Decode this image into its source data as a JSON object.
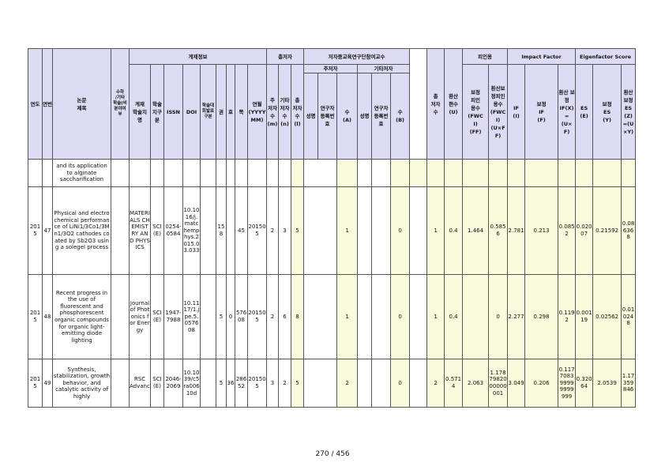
{
  "header": {
    "year": "연도",
    "seq": "연번",
    "title": "논문\n제목",
    "suha": "수하\n/기타\n학술(비\n분야여\n부",
    "journal_info": "게재정보",
    "authors": "총저자",
    "consortium": "저자중교육연구단참여교수",
    "main_author": "주저자",
    "other_author": "기타저자",
    "citation": "피인용",
    "impact_factor": "Impact Factor",
    "eigenfactor": "Eigenfactor Score",
    "journal_name": "게재\n학술지\n명",
    "category": "학술\n지구\n분",
    "issn": "ISSN",
    "doi": "DOI",
    "kci": "학술대\n회발표\n구분",
    "volume": "권",
    "issue": "호",
    "page": "쪽",
    "date": "연월\n(YYYY\nMM)",
    "main_n": "주\n저자\n수\n(m)",
    "other_n": "기타\n저자\n수\n(n)",
    "total_n": "총\n저자\n수\n(l)",
    "m_name": "성명",
    "m_reg": "연구자\n등록번\n호",
    "m_count": "수\n(A)",
    "o_name": "성명",
    "o_reg": "연구자\n등록번\n호",
    "o_count": "수\n(B)",
    "tot_authors": "총\n저자\n수",
    "conv": "환산\n편수\n(U)",
    "fwci": "보정\n피인\n용수\n(FWC\nI)\n(FF)",
    "fwci_conv": "환산보\n정피인\n용수\n(FWCI)\n(U×FF)",
    "if": "IF\n(I)",
    "if_adj": "보정\nIF\n(F)",
    "if_conv": "환산 보정\nIF(X)\n=\n(U×F)",
    "es": "ES\n(E)",
    "es_adj": "보정\nES\n(Y)",
    "es_conv": "환산\n보정\nES(Z)\n=(U×Y)"
  },
  "rows": [
    {
      "year": "",
      "seq": "",
      "title": "and its application to alginate saccharification",
      "journal": "",
      "cat": "",
      "issn": "",
      "doi": "",
      "kci": "",
      "vol": "",
      "iss": "",
      "page": "",
      "date": "",
      "m": "",
      "n": "",
      "l": "",
      "a": "",
      "b": "",
      "tot": "",
      "u": "",
      "fwci": "",
      "fwci_u": "",
      "if": "",
      "if_f": "",
      "if_x": "",
      "es": "",
      "es_y": "",
      "es_z": ""
    },
    {
      "year": "2015",
      "seq": "47",
      "title": "Physical and electrochemical performance of LiNi1/3Co1/3Mn1/3O2 cathodes coated by Sb2O3 using a solegel process",
      "journal": "MATERIALS CHEMISTRY AND PHYSICS",
      "cat": "SCI(E)",
      "issn": "0254-0584",
      "doi": "10.1016/j.matchemphys.2015.03.033",
      "kci": "",
      "vol": "158",
      "iss": "",
      "page": "45",
      "date": "201505",
      "m": "2",
      "n": "3",
      "l": "5",
      "a": "1",
      "b": "0",
      "tot": "1",
      "u": "0.4",
      "fwci": "1.464",
      "fwci_u": "0.5856",
      "if": "2.781",
      "if_f": "0.213",
      "if_x": "0.0852",
      "es": "0.02007",
      "es_y": "0.21592",
      "es_z": "0.086368"
    },
    {
      "year": "2015",
      "seq": "48",
      "title": "Recent progress in the use of fluorescent and phosphorescent organic compounds for organic light-emitting diode lighting",
      "journal": "Journal of Photonics for Energy",
      "cat": "SCI(E)",
      "issn": "1947-7988",
      "doi": "10.1117/1.jpe.5.057608",
      "kci": "",
      "vol": "5",
      "iss": "0",
      "page": "57608",
      "date": "201505",
      "m": "2",
      "n": "6",
      "l": "8",
      "a": "1",
      "b": "0",
      "tot": "1",
      "u": "0.4",
      "fwci": "",
      "fwci_u": "0",
      "if": "2.277",
      "if_f": "0.298",
      "if_x": "0.1192",
      "es": "0.00119",
      "es_y": "0.02562",
      "es_z": "0.010248"
    },
    {
      "year": "2015",
      "seq": "49",
      "title": "Synthesis, stabilization, growth behavior, and catalytic activity of highly",
      "journal": "RSC Advances",
      "cat": "SCI(E)",
      "issn": "2046-2069",
      "doi": "10.1039/c5ra00610d",
      "kci": "",
      "vol": "5",
      "iss": "36",
      "page": "28652",
      "date": "201505",
      "m": "3",
      "n": "2",
      "l": "5",
      "a": "2",
      "b": "0",
      "tot": "2",
      "u": "0.5714",
      "fwci": "2.063",
      "fwci_u": "1.1787982000000001",
      "if": "3.049",
      "if_f": "0.206",
      "if_x": "0.117708399999999999",
      "es": "0.32064",
      "es_y": "2.0539",
      "es_z": "1.17359846"
    }
  ],
  "page_number": "270 / 456"
}
